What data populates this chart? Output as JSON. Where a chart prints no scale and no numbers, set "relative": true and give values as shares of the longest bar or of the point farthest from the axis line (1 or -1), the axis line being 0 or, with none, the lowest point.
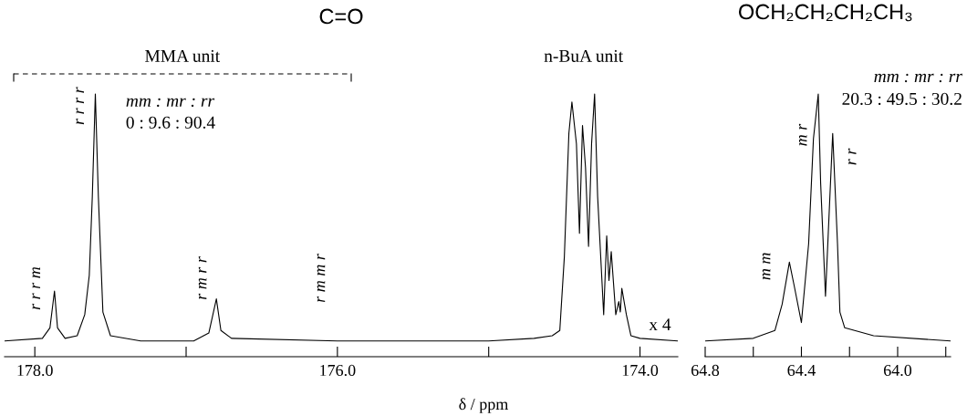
{
  "chart_data": [
    {
      "type": "line",
      "title": "C=O",
      "xlabel": "δ / ppm",
      "relative": true,
      "color": "#000000",
      "x": [
        178.2,
        177.95,
        177.9,
        177.87,
        177.85,
        177.8,
        177.72,
        177.67,
        177.64,
        177.62,
        177.6,
        177.58,
        177.55,
        177.5,
        177.3,
        176.95,
        176.85,
        176.8,
        176.77,
        176.7,
        176.0,
        175.0,
        174.7,
        174.58,
        174.53,
        174.5,
        174.47,
        174.45,
        174.42,
        174.4,
        174.38,
        174.36,
        174.34,
        174.32,
        174.3,
        174.28,
        174.24,
        174.22,
        174.205,
        174.19,
        174.16,
        174.14,
        174.13,
        174.12,
        174.09,
        174.06,
        174.0,
        173.75
      ],
      "values": [
        0.06,
        0.07,
        0.11,
        0.25,
        0.11,
        0.07,
        0.08,
        0.16,
        0.31,
        0.61,
        1.0,
        0.61,
        0.17,
        0.08,
        0.06,
        0.06,
        0.09,
        0.22,
        0.1,
        0.07,
        0.06,
        0.06,
        0.07,
        0.08,
        0.1,
        0.38,
        0.85,
        0.97,
        0.81,
        0.47,
        0.88,
        0.72,
        0.42,
        0.81,
        1.0,
        0.61,
        0.16,
        0.46,
        0.29,
        0.4,
        0.16,
        0.21,
        0.17,
        0.26,
        0.16,
        0.08,
        0.07,
        0.06
      ],
      "xlim": [
        178.2,
        173.75
      ],
      "xticks": [
        {
          "value": 178.0,
          "label": "178.0"
        },
        {
          "value": 177,
          "label": null
        },
        {
          "value": 176.0,
          "label": "176.0"
        },
        {
          "value": 175,
          "label": null
        },
        {
          "value": 174.0,
          "label": "174.0"
        }
      ],
      "tick_labels": "x",
      "annotations": [
        "MMA unit",
        "n-BuA unit",
        "mm : mr : rr",
        "0 : 9.6 : 90.4",
        "x 4",
        "r r r m",
        "r r r r",
        "r m r r",
        "r m m r"
      ]
    },
    {
      "type": "line",
      "title": "OCH₂CH₂CH₂CH₃",
      "relative": true,
      "color": "#000000",
      "x": [
        64.8,
        64.6,
        64.51,
        64.48,
        64.45,
        64.43,
        64.4,
        64.37,
        64.35,
        64.33,
        64.32,
        64.3,
        64.27,
        64.25,
        64.24,
        64.22,
        64.1,
        63.78
      ],
      "values": [
        0.06,
        0.07,
        0.1,
        0.2,
        0.36,
        0.27,
        0.13,
        0.43,
        0.83,
        1.0,
        0.66,
        0.23,
        0.85,
        0.43,
        0.17,
        0.11,
        0.08,
        0.06
      ],
      "xlim": [
        64.8,
        63.78
      ],
      "xticks": [
        {
          "value": 64.8,
          "label": "64.8"
        },
        {
          "value": 64.6,
          "label": null
        },
        {
          "value": 64.4,
          "label": "64.4"
        },
        {
          "value": 64.2,
          "label": null
        },
        {
          "value": 64.0,
          "label": "64.0"
        },
        {
          "value": 63.8,
          "label": null
        }
      ],
      "tick_labels": "x",
      "annotations": [
        "mm : mr : rr",
        "20.3 : 49.5 : 30.2",
        "m m",
        "m r",
        "r r"
      ]
    }
  ]
}
